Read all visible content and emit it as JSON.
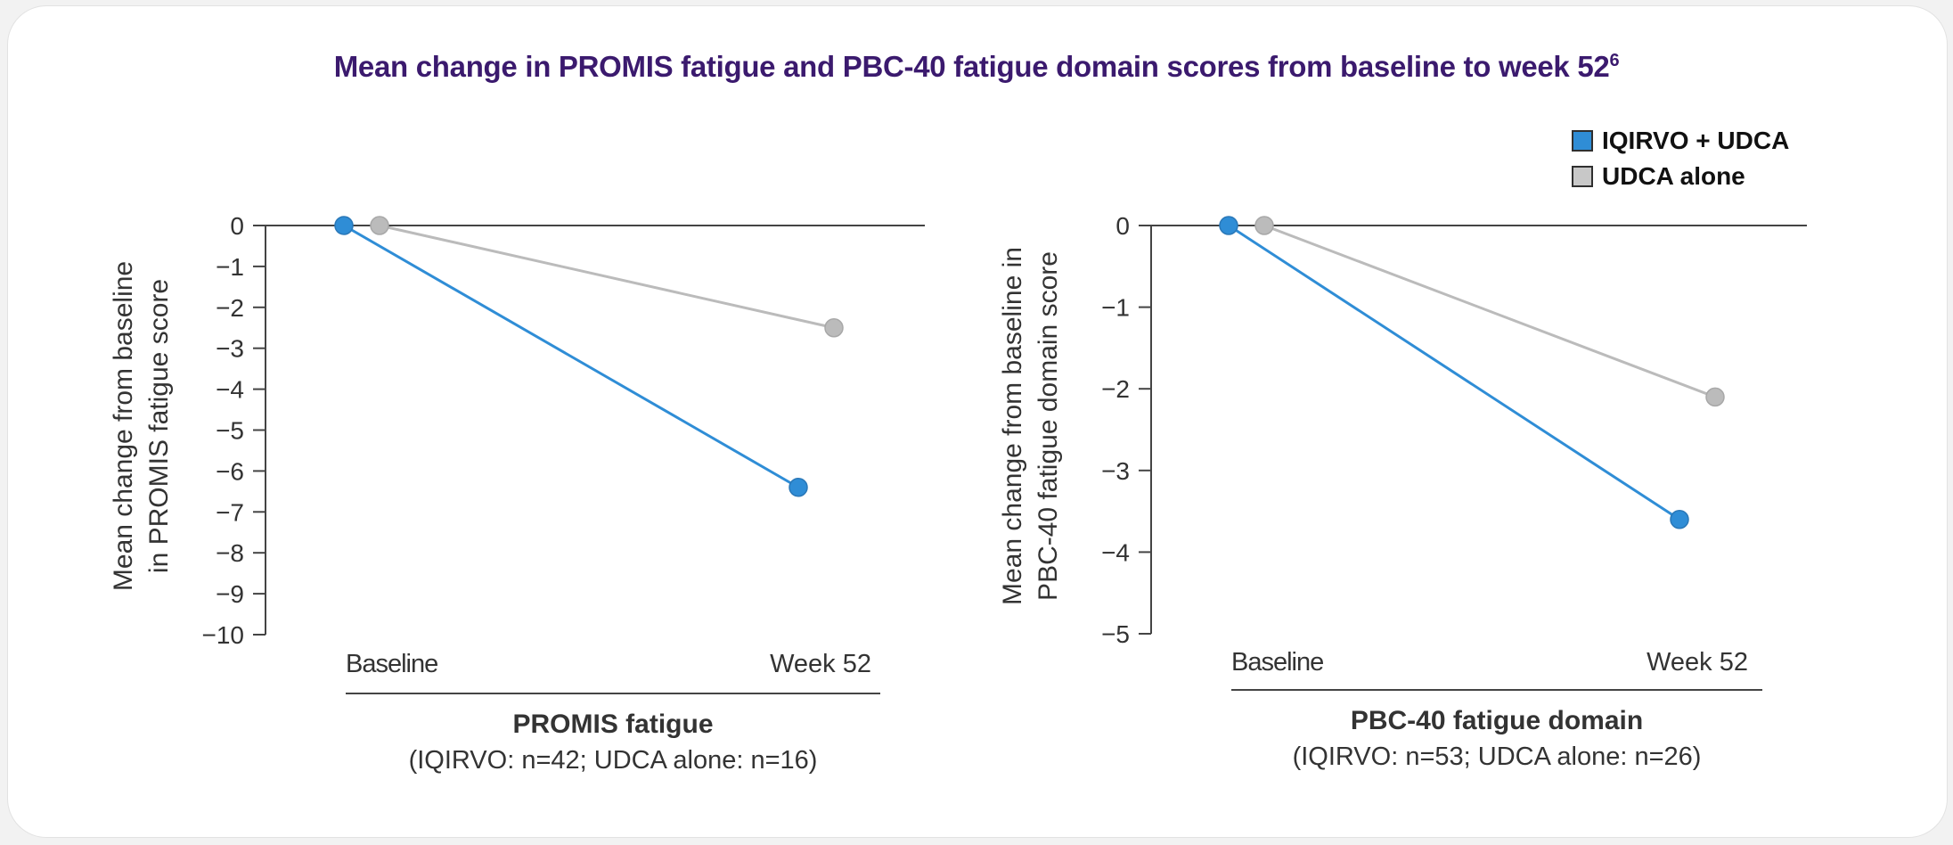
{
  "page_title_main": "Mean change in PROMIS fatigue and PBC-40 fatigue domain scores from baseline to week 52",
  "page_title_ref": "6",
  "colors": {
    "treatment": "#2f8dd6",
    "control": "#bbbbbb",
    "axis": "#444444",
    "title": "#3b1a6e"
  },
  "legend": [
    {
      "label": "IQIRVO + UDCA",
      "color": "#2f8dd6"
    },
    {
      "label": "UDCA alone",
      "color": "#c8c8c8"
    }
  ],
  "chart_data": [
    {
      "type": "line",
      "categories": [
        "Baseline",
        "Week 52"
      ],
      "ylabel_line1": "Mean change from baseline",
      "ylabel_line2": "in PROMIS fatigue score",
      "ylim": [
        -10,
        0
      ],
      "yticks": [
        0,
        -1,
        -2,
        -3,
        -4,
        -5,
        -6,
        -7,
        -8,
        -9,
        -10
      ],
      "ytick_labels": [
        "0",
        "−1",
        "−2",
        "−3",
        "−4",
        "−5",
        "−6",
        "−7",
        "−8",
        "−9",
        "−10"
      ],
      "xlabel_main": "PROMIS fatigue",
      "xlabel_sub": "(IQIRVO: n=42; UDCA alone: n=16)",
      "series": [
        {
          "name": "IQIRVO + UDCA",
          "values": [
            0,
            -6.4
          ]
        },
        {
          "name": "UDCA alone",
          "values": [
            0,
            -2.5
          ]
        }
      ]
    },
    {
      "type": "line",
      "categories": [
        "Baseline",
        "Week 52"
      ],
      "ylabel_line1": "Mean change from baseline in",
      "ylabel_line2": "PBC-40 fatigue domain score",
      "ylim": [
        -5,
        0
      ],
      "yticks": [
        0,
        -1,
        -2,
        -3,
        -4,
        -5
      ],
      "ytick_labels": [
        "0",
        "−1",
        "−2",
        "−3",
        "−4",
        "−5"
      ],
      "xlabel_main": "PBC-40 fatigue domain",
      "xlabel_sub": "(IQIRVO: n=53; UDCA alone: n=26)",
      "series": [
        {
          "name": "IQIRVO + UDCA",
          "values": [
            0,
            -3.6
          ]
        },
        {
          "name": "UDCA alone",
          "values": [
            0,
            -2.1
          ]
        }
      ]
    }
  ]
}
